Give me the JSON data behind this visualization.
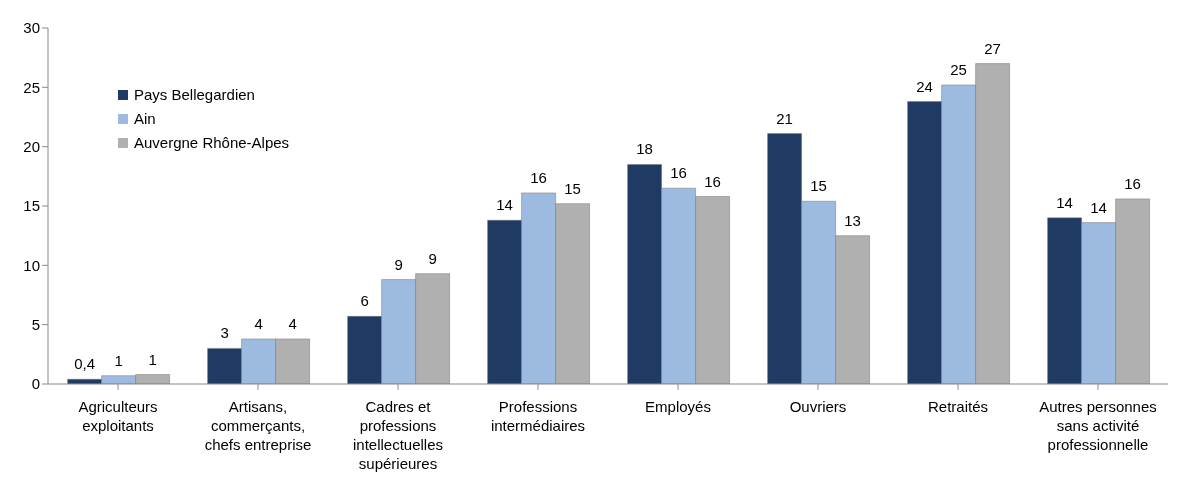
{
  "chart_data": {
    "type": "bar",
    "categories": [
      "Agriculteurs exploitants",
      "Artisans, commerçants, chefs entreprise",
      "Cadres et professions intellectuelles supérieures",
      "Professions intermédiaires",
      "Employés",
      "Ouvriers",
      "Retraités",
      "Autres personnes sans activité professionnelle"
    ],
    "series": [
      {
        "name": "Pays Bellegardien",
        "color": "#1f3a63",
        "values": [
          0.4,
          3.0,
          5.7,
          13.8,
          18.5,
          21.1,
          23.8,
          14.0
        ],
        "value_labels": [
          "0,4",
          "3",
          "6",
          "14",
          "18",
          "21",
          "24",
          "14"
        ]
      },
      {
        "name": "Ain",
        "color": "#9dbbe1",
        "values": [
          0.7,
          3.8,
          8.8,
          16.1,
          16.5,
          15.4,
          25.2,
          13.6
        ],
        "value_labels": [
          "1",
          "4",
          "9",
          "16",
          "16",
          "15",
          "25",
          "14"
        ]
      },
      {
        "name": "Auvergne Rhône-Alpes",
        "color": "#b0b0b0",
        "values": [
          0.8,
          3.8,
          9.3,
          15.2,
          15.8,
          12.5,
          27.0,
          15.6
        ],
        "value_labels": [
          "1",
          "4",
          "9",
          "15",
          "16",
          "13",
          "27",
          "16"
        ]
      }
    ],
    "ylim": [
      0,
      30
    ],
    "yticks": [
      0,
      5,
      10,
      15,
      20,
      25,
      30
    ],
    "grid": false,
    "legend": "top left"
  }
}
